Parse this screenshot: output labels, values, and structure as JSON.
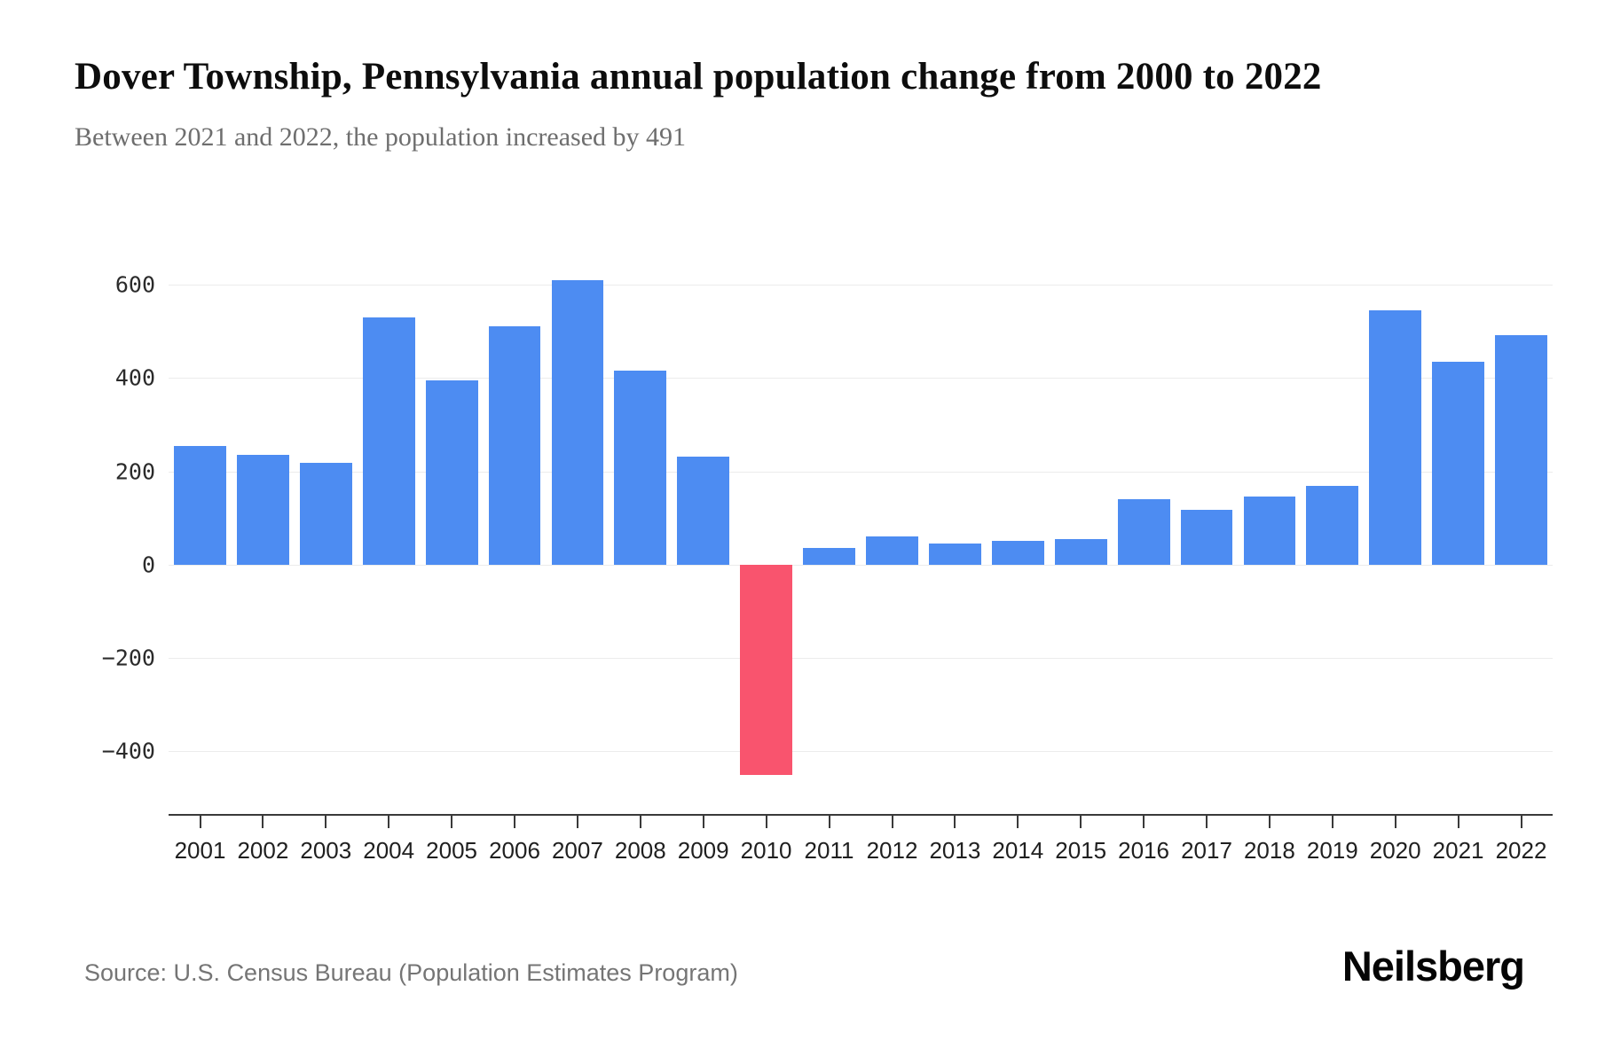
{
  "header": {
    "title": "Dover Township, Pennsylvania annual population change from 2000 to 2022",
    "subtitle": "Between 2021 and 2022, the population increased by 491"
  },
  "chart_data": {
    "type": "bar",
    "title": "Dover Township, Pennsylvania annual population change from 2000 to 2022",
    "xlabel": "",
    "ylabel": "",
    "categories": [
      "2001",
      "2002",
      "2003",
      "2004",
      "2005",
      "2006",
      "2007",
      "2008",
      "2009",
      "2010",
      "2011",
      "2012",
      "2013",
      "2014",
      "2015",
      "2016",
      "2017",
      "2018",
      "2019",
      "2020",
      "2021",
      "2022"
    ],
    "values": [
      255,
      235,
      218,
      530,
      395,
      510,
      610,
      415,
      232,
      -450,
      35,
      60,
      45,
      52,
      55,
      140,
      118,
      147,
      168,
      545,
      435,
      491
    ],
    "ylim": [
      -500,
      640
    ],
    "yticks": [
      600,
      400,
      200,
      0,
      -200,
      -400
    ],
    "ytick_labels": [
      "600",
      "400",
      "200",
      "0",
      "−200",
      "−400"
    ],
    "grid": true,
    "legend": "none",
    "colors": {
      "positive": "#4d8cf2",
      "negative": "#f9546e"
    }
  },
  "footer": {
    "source": "Source: U.S. Census Bureau (Population Estimates Program)",
    "brand": "Neilsberg"
  }
}
